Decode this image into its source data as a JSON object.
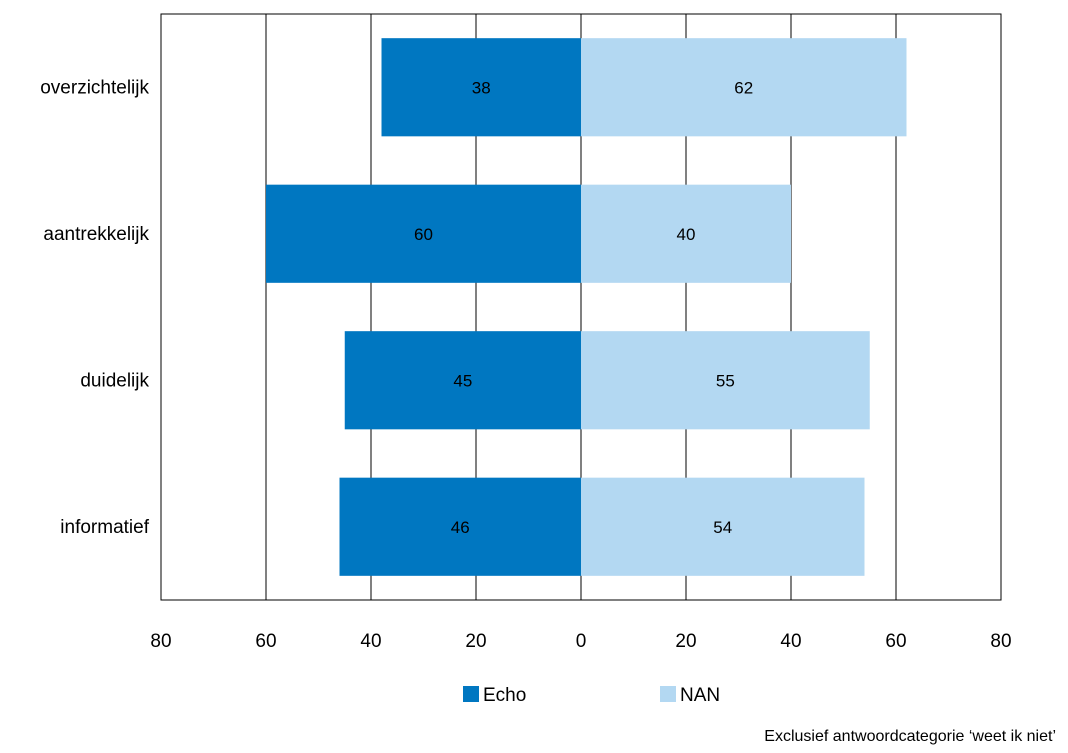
{
  "chart_data": {
    "type": "bar",
    "orientation": "horizontal-diverging",
    "categories": [
      "overzichtelijk",
      "aantrekkelijk",
      "duidelijk",
      "informatief"
    ],
    "series": [
      {
        "name": "Echo",
        "values": [
          38,
          60,
          45,
          46
        ],
        "direction": "left",
        "color": "#0077c1"
      },
      {
        "name": "NAN",
        "values": [
          62,
          40,
          55,
          54
        ],
        "direction": "right",
        "color": "#b3d8f2"
      }
    ],
    "xlim": [
      -80,
      80
    ],
    "x_ticks": [
      80,
      60,
      40,
      20,
      0,
      20,
      40,
      60,
      80
    ],
    "grid": "vertical",
    "legend_position": "bottom-center",
    "title": "",
    "xlabel": "",
    "ylabel": ""
  },
  "footnote": "Exclusief antwoordcategorie ‘weet ik niet’"
}
